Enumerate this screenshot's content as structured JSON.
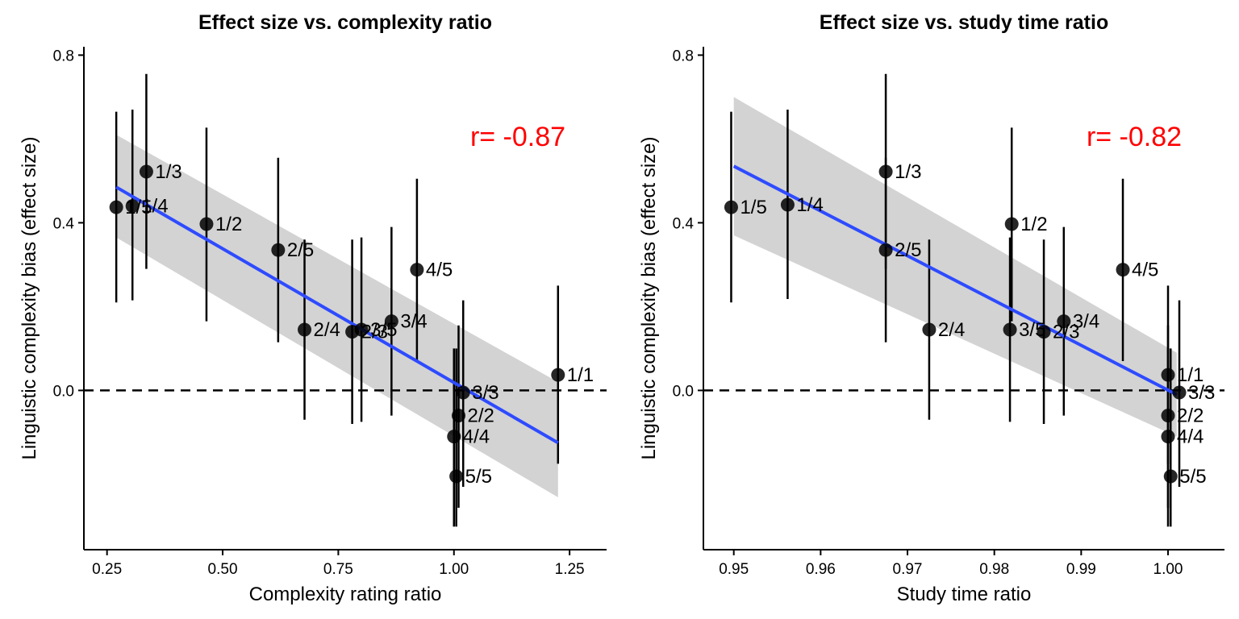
{
  "chart_data": [
    {
      "type": "scatter",
      "title": "Effect size vs. complexity ratio",
      "xlabel": "Complexity rating ratio",
      "ylabel": "Linguistic complexity bias (effect size)",
      "xlim": [
        0.2,
        1.33
      ],
      "ylim": [
        -0.38,
        0.82
      ],
      "xticks": [
        0.25,
        0.5,
        0.75,
        1.0,
        1.25
      ],
      "xtick_labels": [
        "0.25",
        "0.50",
        "0.75",
        "1.00",
        "1.25"
      ],
      "yticks": [
        0.0,
        0.4,
        0.8
      ],
      "ytick_labels": [
        "0.0",
        "0.4",
        "0.8"
      ],
      "reference_line": {
        "y": 0,
        "style": "dashed"
      },
      "correlation_label": "r= -0.87",
      "correlation_color": "#ff0000",
      "point_color": "#000000",
      "fit_line_color": "#2e4bff",
      "ci_band_color": "#d3d3d3",
      "grid": false,
      "fit": {
        "x": [
          0.27,
          1.225
        ],
        "y": [
          0.485,
          -0.125
        ],
        "ci_upper": [
          0.61,
          0.02
        ],
        "ci_lower": [
          0.365,
          -0.255
        ]
      },
      "points": [
        {
          "label": "1/5",
          "x": 0.27,
          "y": 0.437,
          "ylow": 0.21,
          "yhigh": 0.665
        },
        {
          "label": "1/4",
          "x": 0.305,
          "y": 0.44,
          "ylow": 0.215,
          "yhigh": 0.67
        },
        {
          "label": "1/3",
          "x": 0.335,
          "y": 0.522,
          "ylow": 0.29,
          "yhigh": 0.755
        },
        {
          "label": "1/2",
          "x": 0.465,
          "y": 0.397,
          "ylow": 0.165,
          "yhigh": 0.627
        },
        {
          "label": "2/5",
          "x": 0.62,
          "y": 0.335,
          "ylow": 0.115,
          "yhigh": 0.555
        },
        {
          "label": "2/4",
          "x": 0.677,
          "y": 0.145,
          "ylow": -0.07,
          "yhigh": 0.36
        },
        {
          "label": "2/3",
          "x": 0.78,
          "y": 0.14,
          "ylow": -0.08,
          "yhigh": 0.36
        },
        {
          "label": "3/5",
          "x": 0.8,
          "y": 0.145,
          "ylow": -0.075,
          "yhigh": 0.365
        },
        {
          "label": "3/4",
          "x": 0.865,
          "y": 0.165,
          "ylow": -0.06,
          "yhigh": 0.39
        },
        {
          "label": "4/5",
          "x": 0.92,
          "y": 0.288,
          "ylow": 0.07,
          "yhigh": 0.505
        },
        {
          "label": "3/3",
          "x": 1.02,
          "y": -0.005,
          "ylow": -0.23,
          "yhigh": 0.215
        },
        {
          "label": "2/2",
          "x": 1.01,
          "y": -0.06,
          "ylow": -0.28,
          "yhigh": 0.155
        },
        {
          "label": "4/4",
          "x": 1.0,
          "y": -0.11,
          "ylow": -0.325,
          "yhigh": 0.1
        },
        {
          "label": "5/5",
          "x": 1.005,
          "y": -0.205,
          "ylow": -0.325,
          "yhigh": 0.1
        },
        {
          "label": "1/1",
          "x": 1.225,
          "y": 0.037,
          "ylow": -0.175,
          "yhigh": 0.25
        }
      ]
    },
    {
      "type": "scatter",
      "title": "Effect size vs. study time ratio",
      "xlabel": "Study time ratio",
      "ylabel": "Linguistic complexity bias (effect size)",
      "xlim": [
        0.9465,
        1.0065
      ],
      "ylim": [
        -0.38,
        0.82
      ],
      "xticks": [
        0.95,
        0.96,
        0.97,
        0.98,
        0.99,
        1.0
      ],
      "xtick_labels": [
        "0.95",
        "0.96",
        "0.97",
        "0.98",
        "0.99",
        "1.00"
      ],
      "yticks": [
        0.0,
        0.4,
        0.8
      ],
      "ytick_labels": [
        "0.0",
        "0.4",
        "0.8"
      ],
      "reference_line": {
        "y": 0,
        "style": "dashed"
      },
      "correlation_label": "r= -0.82",
      "correlation_color": "#ff0000",
      "point_color": "#000000",
      "fit_line_color": "#2e4bff",
      "ci_band_color": "#d3d3d3",
      "grid": false,
      "fit": {
        "x": [
          0.95,
          1.001
        ],
        "y": [
          0.535,
          -0.01
        ],
        "ci_upper": [
          0.7,
          0.09
        ],
        "ci_lower": [
          0.37,
          -0.11
        ]
      },
      "points": [
        {
          "label": "1/5",
          "x": 0.9497,
          "y": 0.437,
          "ylow": 0.21,
          "yhigh": 0.665
        },
        {
          "label": "1/4",
          "x": 0.9562,
          "y": 0.443,
          "ylow": 0.218,
          "yhigh": 0.67
        },
        {
          "label": "1/3",
          "x": 0.9675,
          "y": 0.522,
          "ylow": 0.29,
          "yhigh": 0.755
        },
        {
          "label": "2/5",
          "x": 0.9675,
          "y": 0.335,
          "ylow": 0.115,
          "yhigh": 0.555
        },
        {
          "label": "2/4",
          "x": 0.9725,
          "y": 0.145,
          "ylow": -0.07,
          "yhigh": 0.36
        },
        {
          "label": "1/2",
          "x": 0.982,
          "y": 0.397,
          "ylow": 0.165,
          "yhigh": 0.627
        },
        {
          "label": "3/5",
          "x": 0.9818,
          "y": 0.145,
          "ylow": -0.075,
          "yhigh": 0.365
        },
        {
          "label": "2/3",
          "x": 0.9857,
          "y": 0.14,
          "ylow": -0.08,
          "yhigh": 0.36
        },
        {
          "label": "3/4",
          "x": 0.988,
          "y": 0.165,
          "ylow": -0.06,
          "yhigh": 0.39
        },
        {
          "label": "4/5",
          "x": 0.9948,
          "y": 0.288,
          "ylow": 0.07,
          "yhigh": 0.505
        },
        {
          "label": "1/1",
          "x": 1.0,
          "y": 0.037,
          "ylow": -0.175,
          "yhigh": 0.25
        },
        {
          "label": "3/3",
          "x": 1.0013,
          "y": -0.005,
          "ylow": -0.23,
          "yhigh": 0.215
        },
        {
          "label": "2/2",
          "x": 1.0,
          "y": -0.06,
          "ylow": -0.28,
          "yhigh": 0.155
        },
        {
          "label": "4/4",
          "x": 1.0,
          "y": -0.11,
          "ylow": -0.325,
          "yhigh": 0.1
        },
        {
          "label": "5/5",
          "x": 1.0003,
          "y": -0.205,
          "ylow": -0.325,
          "yhigh": 0.1
        }
      ]
    }
  ]
}
